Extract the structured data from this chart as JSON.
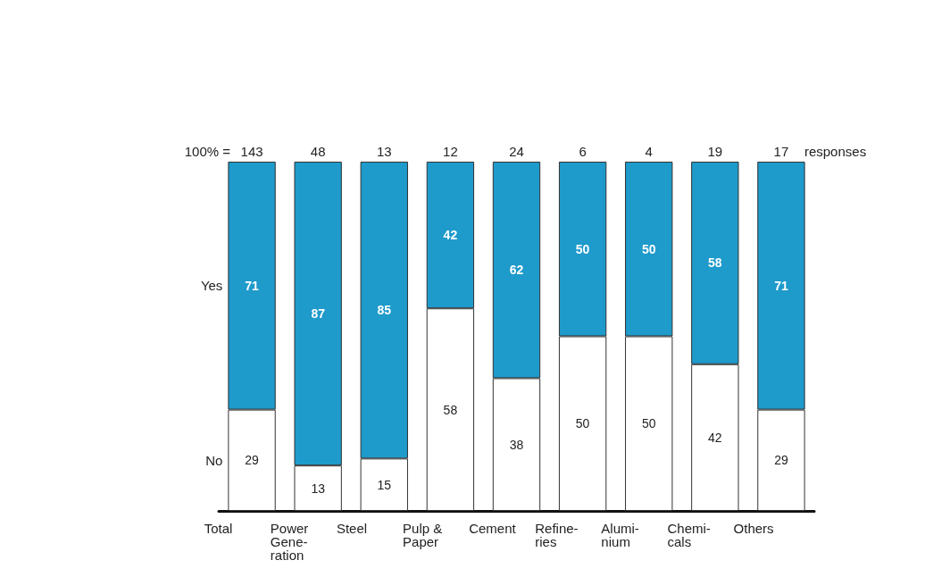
{
  "chart_data": {
    "type": "bar",
    "stacked": true,
    "data_labels": true,
    "legend": false,
    "categories": [
      "Total",
      "Power\nGene-\nration",
      "Steel",
      "Pulp &\nPaper",
      "Cement",
      "Refine-\nries",
      "Alumi-\nnium",
      "Chemi-\ncals",
      "Others"
    ],
    "series": [
      {
        "name": "No",
        "color": "#ffffff",
        "values": [
          29,
          13,
          15,
          58,
          38,
          50,
          50,
          42,
          29
        ]
      },
      {
        "name": "Yes",
        "color": "#1e9acb",
        "values": [
          71,
          87,
          85,
          42,
          62,
          50,
          50,
          58,
          71
        ]
      }
    ],
    "annotations": [
      "100% =",
      "143",
      "48",
      "13",
      "12",
      "24",
      "6",
      "4",
      "19",
      "17",
      "responses"
    ]
  }
}
